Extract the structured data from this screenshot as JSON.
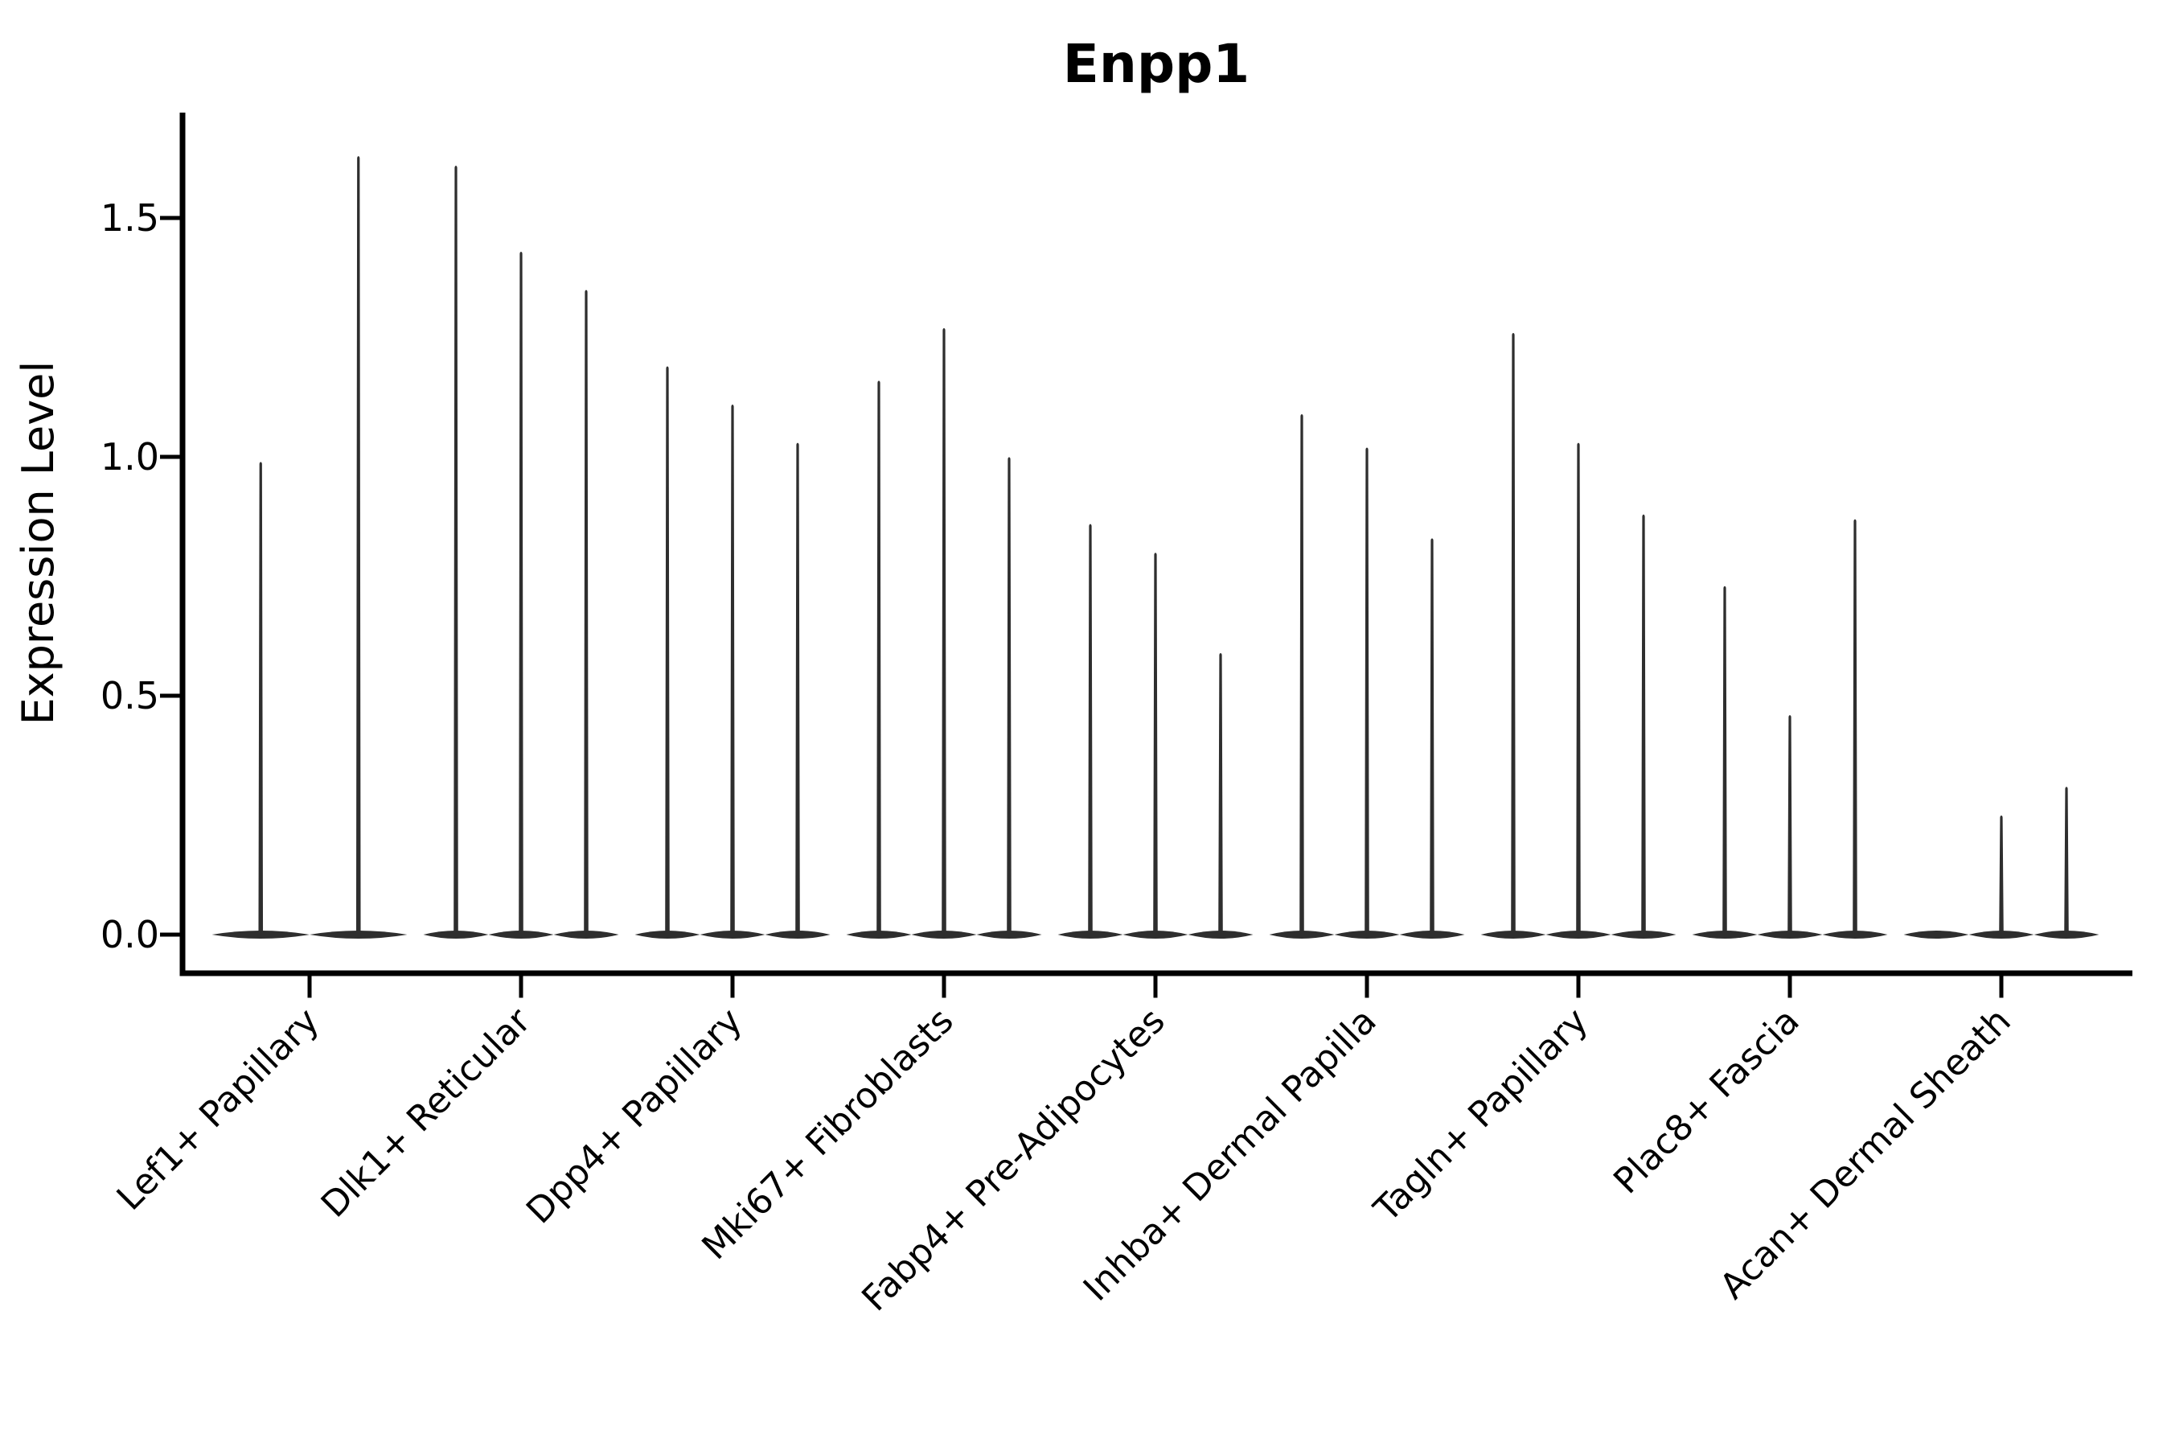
{
  "chart_data": {
    "type": "violin",
    "title": "Enpp1",
    "xlabel": "",
    "ylabel": "Expression Level",
    "grid": false,
    "legend": null,
    "ylim": [
      -0.08,
      1.72
    ],
    "ytick_values": [
      0.0,
      0.5,
      1.0,
      1.5
    ],
    "ytick_labels": [
      "0.0",
      "0.5",
      "1.0",
      "1.5"
    ],
    "categories": [
      "Lef1+ Papillary",
      "Dlk1+ Reticular",
      "Dpp4+ Papillary",
      "Mki67+ Fibroblasts",
      "Fabp4+ Pre-Adipocytes",
      "Inhba+ Dermal Papilla",
      "Tagln+ Papillary",
      "Plac8+ Fascia",
      "Acan+ Dermal Sheath"
    ],
    "groups": [
      {
        "label": "Lef1+ Papillary",
        "spike_maxima": [
          0.99,
          1.63
        ]
      },
      {
        "label": "Dlk1+ Reticular",
        "spike_maxima": [
          1.61,
          1.43,
          1.35
        ]
      },
      {
        "label": "Dpp4+ Papillary",
        "spike_maxima": [
          1.19,
          1.11,
          1.03
        ]
      },
      {
        "label": "Mki67+ Fibroblasts",
        "spike_maxima": [
          1.16,
          1.27,
          1.0
        ]
      },
      {
        "label": "Fabp4+ Pre-Adipocytes",
        "spike_maxima": [
          0.86,
          0.8,
          0.59
        ]
      },
      {
        "label": "Inhba+ Dermal Papilla",
        "spike_maxima": [
          1.09,
          1.02,
          0.83
        ]
      },
      {
        "label": "Tagln+ Papillary",
        "spike_maxima": [
          1.26,
          1.03,
          0.88
        ]
      },
      {
        "label": "Plac8+ Fascia",
        "spike_maxima": [
          0.73,
          0.46,
          0.87
        ]
      },
      {
        "label": "Acan+ Dermal Sheath",
        "spike_maxima": [
          0.0,
          0.25,
          0.31
        ]
      }
    ],
    "colors": {
      "violin": "#2e2e2e",
      "axis": "#000000",
      "text": "#000000",
      "background": "#ffffff"
    }
  }
}
